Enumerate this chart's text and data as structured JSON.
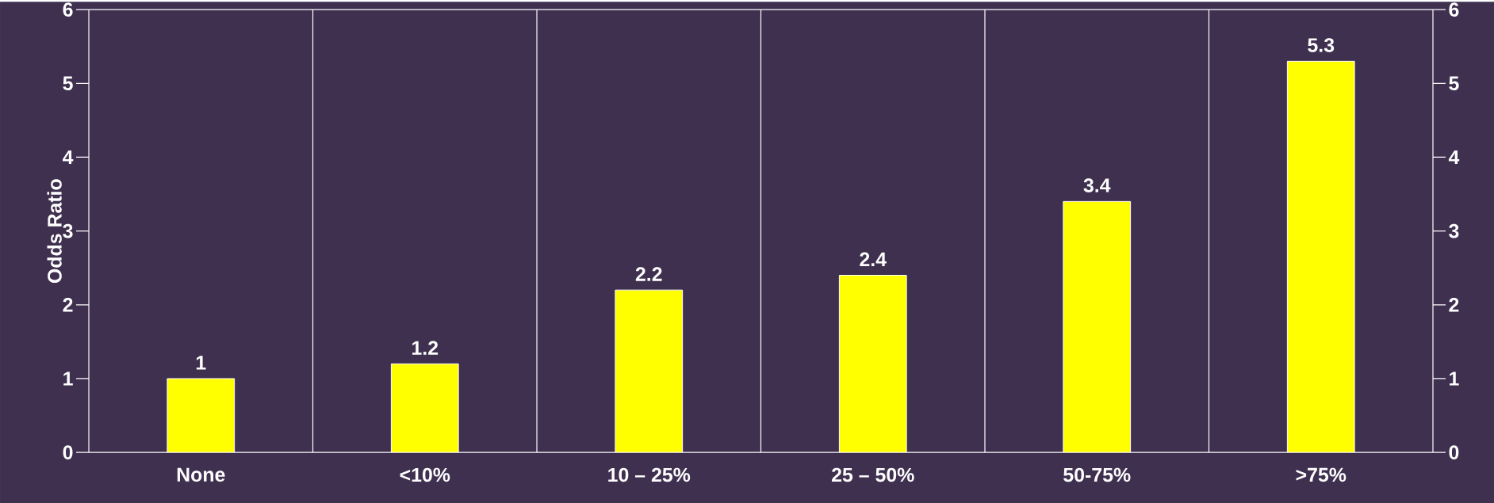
{
  "chart_data": {
    "type": "bar",
    "ylabel": "Odds Ratio",
    "categories": [
      "None",
      "<10%",
      "10 – 25%",
      "25 – 50%",
      "50-75%",
      ">75%"
    ],
    "values": [
      1,
      1.2,
      2.2,
      2.4,
      3.4,
      5.3
    ],
    "color": "#ffff00",
    "data_labels": true,
    "ylim": [
      0,
      6
    ],
    "yticks": [
      0,
      1,
      2,
      3,
      4,
      5,
      6
    ],
    "y2lim": [
      0,
      6
    ],
    "y2ticks": [
      0,
      1,
      2,
      3,
      4,
      5,
      6
    ],
    "grid": "x"
  }
}
